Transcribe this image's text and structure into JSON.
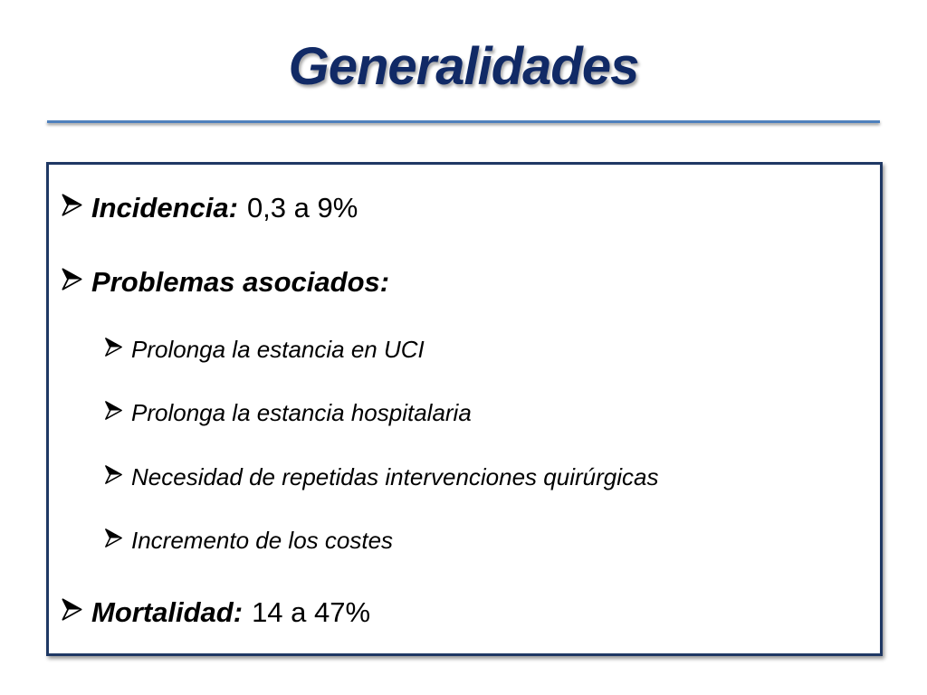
{
  "slide": {
    "title": "Generalidades"
  },
  "items": [
    {
      "label": "Incidencia:",
      "value": "0,3 a 9%"
    },
    {
      "label": "Problemas asociados:"
    },
    {
      "text": "Prolonga la estancia en UCI"
    },
    {
      "text": "Prolonga la estancia hospitalaria"
    },
    {
      "text": "Necesidad de repetidas intervenciones quirúrgicas"
    },
    {
      "text": "Incremento de los costes"
    },
    {
      "label": "Mortalidad:",
      "value": "14 a 47%"
    }
  ],
  "icons": {
    "bullet": "arrowhead-bullet-icon"
  },
  "colors": {
    "title": "#112a66",
    "rule": "#4f81bd",
    "box_border": "#1f3864"
  }
}
